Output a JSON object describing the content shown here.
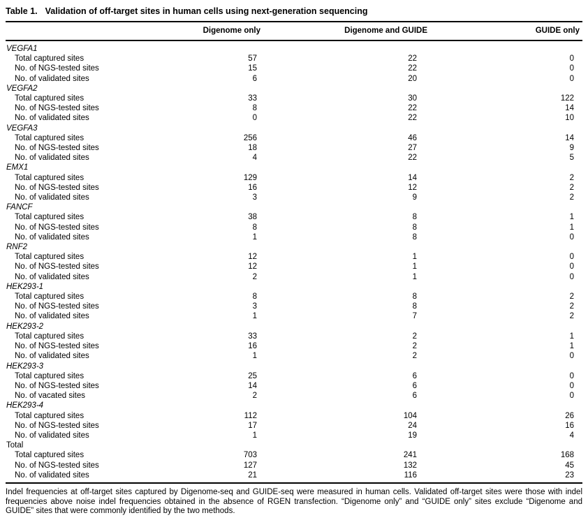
{
  "table": {
    "label": "Table 1.",
    "title": "Validation of off-target sites in human cells using next-generation sequencing",
    "columns": [
      "Digenome only",
      "Digenome and GUIDE",
      "GUIDE only"
    ],
    "groups": [
      {
        "name": "VEGFA1",
        "italic": true,
        "rows": [
          {
            "label": "Total captured sites",
            "values": [
              "57",
              "22",
              "0"
            ]
          },
          {
            "label": "No. of NGS-tested sites",
            "values": [
              "15",
              "22",
              "0"
            ]
          },
          {
            "label": "No. of validated sites",
            "values": [
              "6",
              "20",
              "0"
            ]
          }
        ]
      },
      {
        "name": "VEGFA2",
        "italic": true,
        "rows": [
          {
            "label": "Total captured sites",
            "values": [
              "33",
              "30",
              "122"
            ]
          },
          {
            "label": "No. of NGS-tested sites",
            "values": [
              "8",
              "22",
              "14"
            ]
          },
          {
            "label": "No. of validated sites",
            "values": [
              "0",
              "22",
              "10"
            ]
          }
        ]
      },
      {
        "name": "VEGFA3",
        "italic": true,
        "rows": [
          {
            "label": "Total captured sites",
            "values": [
              "256",
              "46",
              "14"
            ]
          },
          {
            "label": "No. of NGS-tested sites",
            "values": [
              "18",
              "27",
              "9"
            ]
          },
          {
            "label": "No. of validated sites",
            "values": [
              "4",
              "22",
              "5"
            ]
          }
        ]
      },
      {
        "name": "EMX1",
        "italic": true,
        "rows": [
          {
            "label": "Total captured sites",
            "values": [
              "129",
              "14",
              "2"
            ]
          },
          {
            "label": "No. of NGS-tested sites",
            "values": [
              "16",
              "12",
              "2"
            ]
          },
          {
            "label": "No. of validated sites",
            "values": [
              "3",
              "9",
              "2"
            ]
          }
        ]
      },
      {
        "name": "FANCF",
        "italic": true,
        "rows": [
          {
            "label": "Total captured sites",
            "values": [
              "38",
              "8",
              "1"
            ]
          },
          {
            "label": "No. of NGS-tested sites",
            "values": [
              "8",
              "8",
              "1"
            ]
          },
          {
            "label": "No. of validated sites",
            "values": [
              "1",
              "8",
              "0"
            ]
          }
        ]
      },
      {
        "name": "RNF2",
        "italic": true,
        "rows": [
          {
            "label": "Total captured sites",
            "values": [
              "12",
              "1",
              "0"
            ]
          },
          {
            "label": "No. of NGS-tested sites",
            "values": [
              "12",
              "1",
              "0"
            ]
          },
          {
            "label": "No. of validated sites",
            "values": [
              "2",
              "1",
              "0"
            ]
          }
        ]
      },
      {
        "name": "HEK293-1",
        "italic": true,
        "rows": [
          {
            "label": "Total captured sites",
            "values": [
              "8",
              "8",
              "2"
            ]
          },
          {
            "label": "No. of NGS-tested sites",
            "values": [
              "3",
              "8",
              "2"
            ]
          },
          {
            "label": "No. of validated sites",
            "values": [
              "1",
              "7",
              "2"
            ]
          }
        ]
      },
      {
        "name": "HEK293-2",
        "italic": true,
        "rows": [
          {
            "label": "Total captured sites",
            "values": [
              "33",
              "2",
              "1"
            ]
          },
          {
            "label": "No. of NGS-tested sites",
            "values": [
              "16",
              "2",
              "1"
            ]
          },
          {
            "label": "No. of validated sites",
            "values": [
              "1",
              "2",
              "0"
            ]
          }
        ]
      },
      {
        "name": "HEK293-3",
        "italic": true,
        "rows": [
          {
            "label": "Total captured sites",
            "values": [
              "25",
              "6",
              "0"
            ]
          },
          {
            "label": "No. of NGS-tested sites",
            "values": [
              "14",
              "6",
              "0"
            ]
          },
          {
            "label": "No. of vacated sites",
            "values": [
              "2",
              "6",
              "0"
            ]
          }
        ]
      },
      {
        "name": "HEK293-4",
        "italic": true,
        "rows": [
          {
            "label": "Total captured sites",
            "values": [
              "112",
              "104",
              "26"
            ]
          },
          {
            "label": "No. of NGS-tested sites",
            "values": [
              "17",
              "24",
              "16"
            ]
          },
          {
            "label": "No. of validated sites",
            "values": [
              "1",
              "19",
              "4"
            ]
          }
        ]
      },
      {
        "name": "Total",
        "italic": false,
        "rows": [
          {
            "label": "Total captured sites",
            "values": [
              "703",
              "241",
              "168"
            ]
          },
          {
            "label": "No. of NGS-tested sites",
            "values": [
              "127",
              "132",
              "45"
            ]
          },
          {
            "label": "No. of validated sites",
            "values": [
              "21",
              "116",
              "23"
            ]
          }
        ]
      }
    ],
    "footnote": "Indel frequencies at off-target sites captured by Digenome-seq and GUIDE-seq were measured in human cells. Validated off-target sites were those with indel frequencies above noise indel frequencies obtained in the absence of RGEN transfection. “Digenome only” and “GUIDE only” sites exclude “Digenome and GUIDE” sites that were commonly identified by the two methods."
  }
}
